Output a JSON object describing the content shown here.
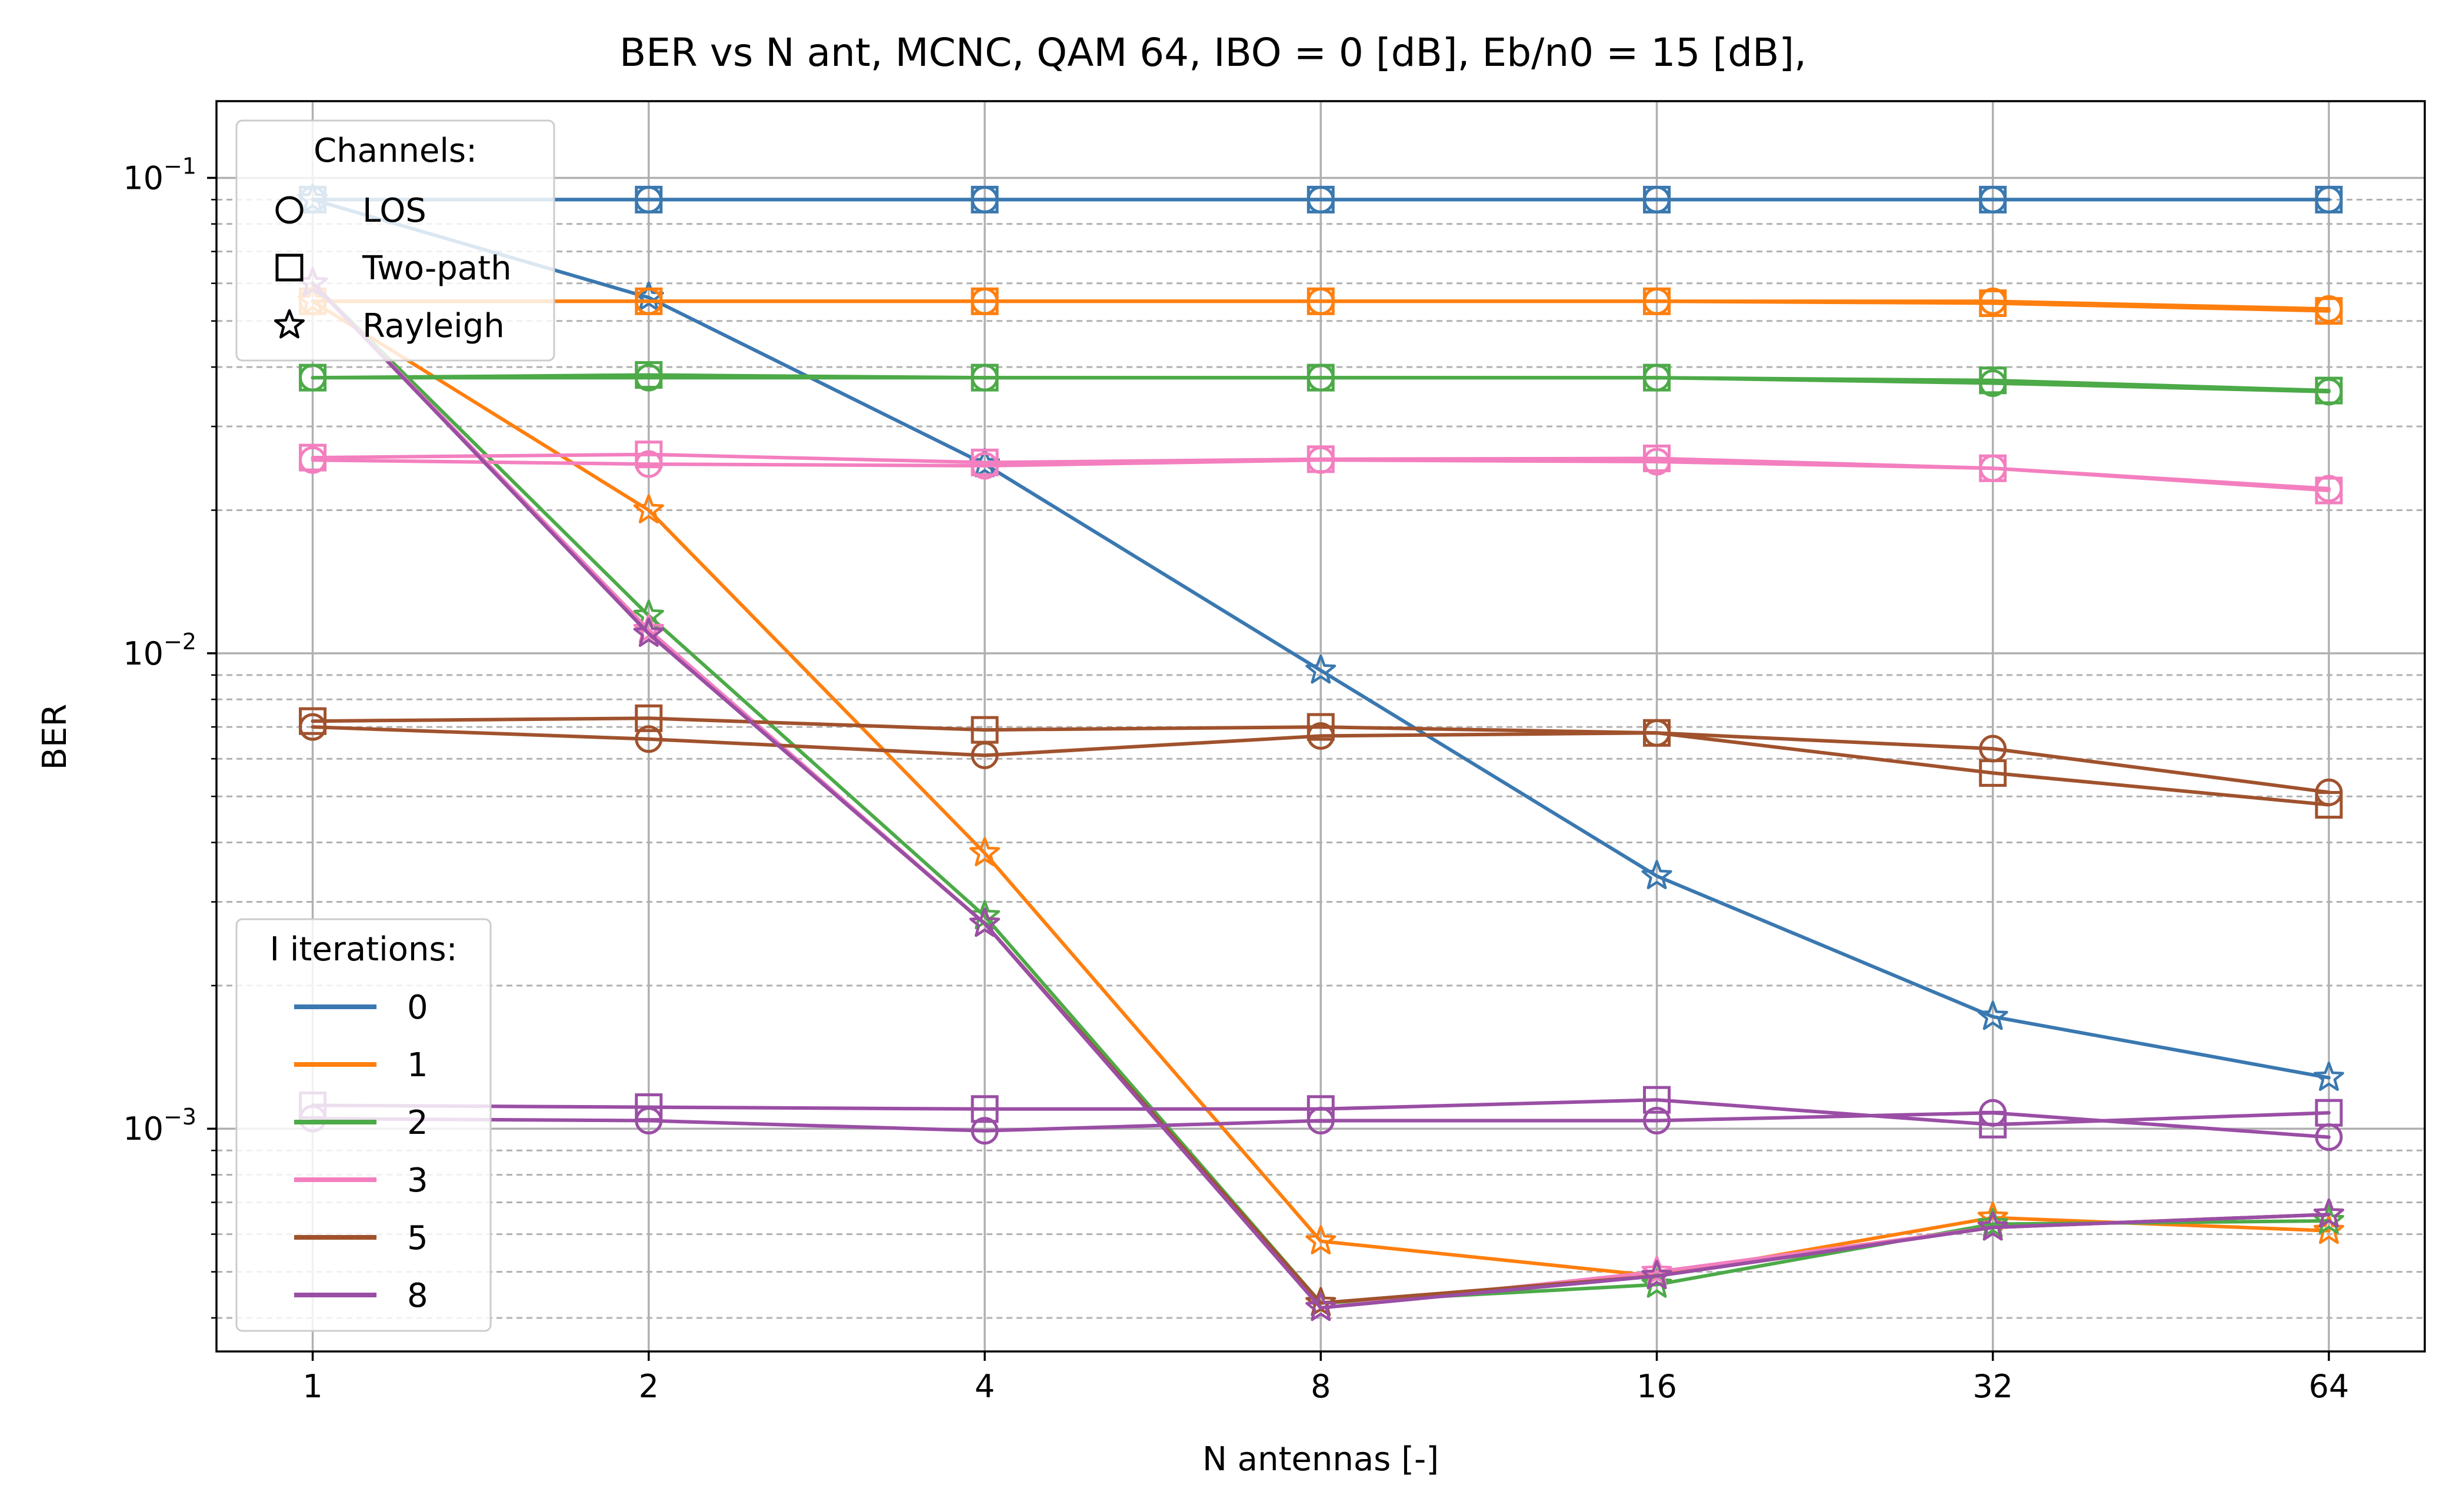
{
  "chart_data": {
    "type": "line",
    "title": "BER vs N ant, MCNC, QAM 64, IBO = 0 [dB], Eb/n0 = 15 [dB],",
    "xlabel": "N antennas [-]",
    "ylabel": "BER",
    "x_scale": "log2",
    "y_scale": "log10",
    "x": [
      1,
      2,
      4,
      8,
      16,
      32,
      64
    ],
    "x_tick_labels": [
      "1",
      "2",
      "4",
      "8",
      "16",
      "32",
      "64"
    ],
    "y_tick_labels": [
      {
        "value": 0.1,
        "base": "10",
        "exp": "−1"
      },
      {
        "value": 0.01,
        "base": "10",
        "exp": "−2"
      },
      {
        "value": 0.001,
        "base": "10",
        "exp": "−3"
      }
    ],
    "xlim": [
      0.82,
      78
    ],
    "ylim": [
      0.00034,
      0.145
    ],
    "grid": "major solid + minor dashed (y)",
    "legend_iterations": {
      "title": "I iterations:",
      "placement": "lower-left",
      "entries": [
        {
          "label": "0",
          "color": "#3a78b0"
        },
        {
          "label": "1",
          "color": "#ff7f0e"
        },
        {
          "label": "2",
          "color": "#4caa48"
        },
        {
          "label": "3",
          "color": "#f37fbf"
        },
        {
          "label": "5",
          "color": "#a0522d"
        },
        {
          "label": "8",
          "color": "#9a4ea5"
        }
      ]
    },
    "legend_channels": {
      "title": "Channels:",
      "placement": "upper-left",
      "entries": [
        {
          "label": "LOS",
          "marker": "circle"
        },
        {
          "label": "Two-path",
          "marker": "square"
        },
        {
          "label": "Rayleigh",
          "marker": "star"
        }
      ]
    },
    "series": [
      {
        "iterations": "0",
        "channel": "LOS",
        "marker": "circle",
        "color": "#3a78b0",
        "values": [
          0.09,
          0.09,
          0.09,
          0.09,
          0.09,
          0.09,
          0.09
        ]
      },
      {
        "iterations": "0",
        "channel": "Two-path",
        "marker": "square",
        "color": "#3a78b0",
        "values": [
          0.09,
          0.09,
          0.09,
          0.09,
          0.09,
          0.09,
          0.09
        ]
      },
      {
        "iterations": "0",
        "channel": "Rayleigh",
        "marker": "star",
        "color": "#3a78b0",
        "values": [
          0.09,
          0.056,
          0.025,
          0.0092,
          0.0034,
          0.00172,
          0.00128
        ]
      },
      {
        "iterations": "1",
        "channel": "LOS",
        "marker": "circle",
        "color": "#ff7f0e",
        "values": [
          0.055,
          0.055,
          0.055,
          0.055,
          0.055,
          0.055,
          0.053
        ]
      },
      {
        "iterations": "1",
        "channel": "Two-path",
        "marker": "square",
        "color": "#ff7f0e",
        "values": [
          0.055,
          0.055,
          0.055,
          0.055,
          0.055,
          0.0545,
          0.0525
        ]
      },
      {
        "iterations": "1",
        "channel": "Rayleigh",
        "marker": "star",
        "color": "#ff7f0e",
        "values": [
          0.055,
          0.02,
          0.0038,
          0.00058,
          0.00049,
          0.00065,
          0.00061
        ]
      },
      {
        "iterations": "2",
        "channel": "LOS",
        "marker": "circle",
        "color": "#4caa48",
        "values": [
          0.038,
          0.038,
          0.038,
          0.038,
          0.038,
          0.037,
          0.0355
        ]
      },
      {
        "iterations": "2",
        "channel": "Two-path",
        "marker": "square",
        "color": "#4caa48",
        "values": [
          0.038,
          0.0385,
          0.038,
          0.038,
          0.038,
          0.0375,
          0.0357
        ]
      },
      {
        "iterations": "2",
        "channel": "Rayleigh",
        "marker": "star",
        "color": "#4caa48",
        "values": [
          0.06,
          0.012,
          0.0028,
          0.00043,
          0.00047,
          0.00063,
          0.00064
        ]
      },
      {
        "iterations": "3",
        "channel": "LOS",
        "marker": "circle",
        "color": "#f37fbf",
        "values": [
          0.0255,
          0.025,
          0.0248,
          0.0255,
          0.0253,
          0.0245,
          0.0222
        ]
      },
      {
        "iterations": "3",
        "channel": "Two-path",
        "marker": "square",
        "color": "#f37fbf",
        "values": [
          0.0258,
          0.0262,
          0.0252,
          0.0256,
          0.0257,
          0.0245,
          0.022
        ]
      },
      {
        "iterations": "3",
        "channel": "Rayleigh",
        "marker": "star",
        "color": "#f37fbf",
        "values": [
          0.06,
          0.0112,
          0.0027,
          0.00042,
          0.0005,
          0.00062,
          0.00066
        ]
      },
      {
        "iterations": "5",
        "channel": "LOS",
        "marker": "circle",
        "color": "#a0522d",
        "values": [
          0.007,
          0.0066,
          0.0061,
          0.0067,
          0.0068,
          0.0063,
          0.0051
        ]
      },
      {
        "iterations": "5",
        "channel": "Two-path",
        "marker": "square",
        "color": "#a0522d",
        "values": [
          0.0072,
          0.0073,
          0.0069,
          0.007,
          0.0068,
          0.0056,
          0.0048
        ]
      },
      {
        "iterations": "5",
        "channel": "Rayleigh",
        "marker": "star",
        "color": "#a0522d",
        "values": [
          0.06,
          0.011,
          0.0027,
          0.00043,
          0.00049,
          0.00062,
          0.00066
        ]
      },
      {
        "iterations": "8",
        "channel": "LOS",
        "marker": "circle",
        "color": "#9a4ea5",
        "values": [
          0.00105,
          0.00104,
          0.00099,
          0.00104,
          0.00104,
          0.00108,
          0.00096
        ]
      },
      {
        "iterations": "8",
        "channel": "Two-path",
        "marker": "square",
        "color": "#9a4ea5",
        "values": [
          0.00112,
          0.00111,
          0.0011,
          0.0011,
          0.00115,
          0.00102,
          0.00108
        ]
      },
      {
        "iterations": "8",
        "channel": "Rayleigh",
        "marker": "star",
        "color": "#9a4ea5",
        "values": [
          0.06,
          0.011,
          0.0027,
          0.00042,
          0.00049,
          0.00062,
          0.00066
        ]
      }
    ]
  }
}
